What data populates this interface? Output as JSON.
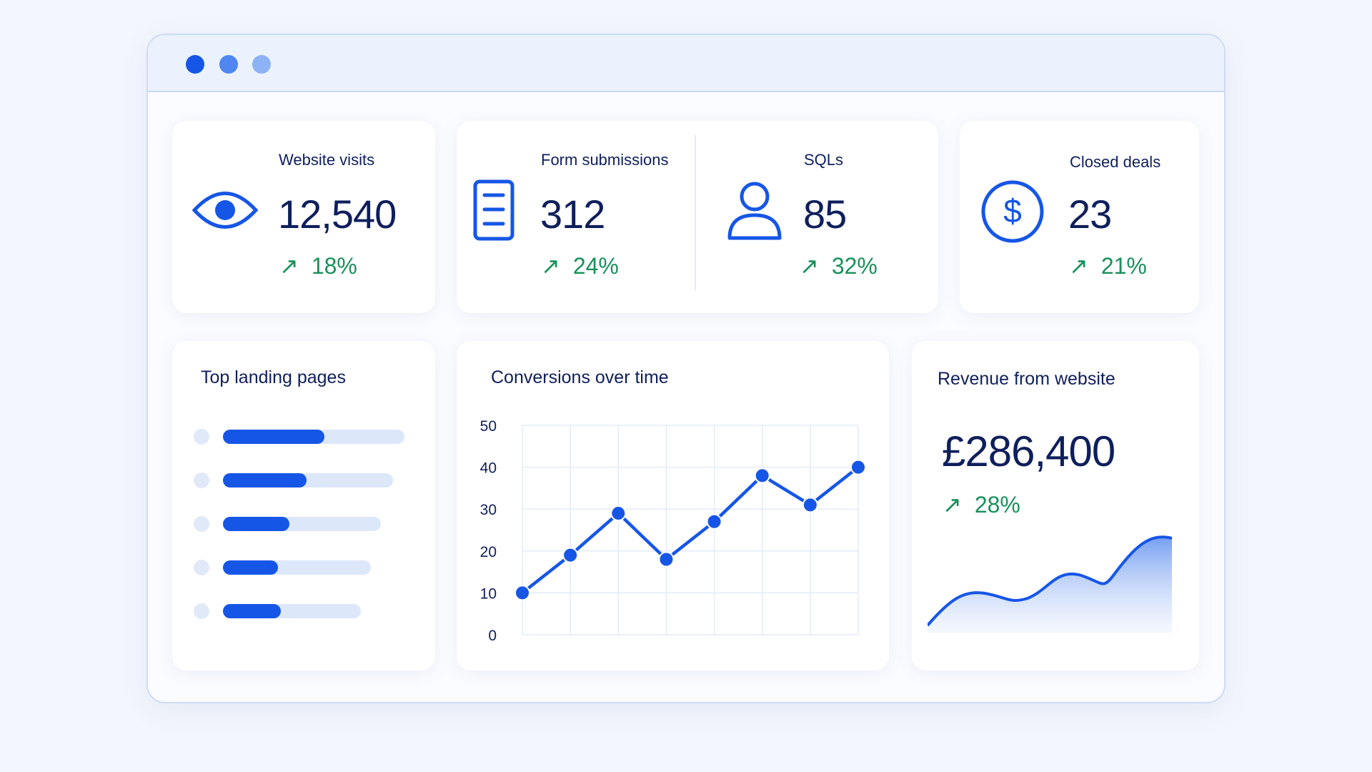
{
  "colors": {
    "accent": "#1656e6",
    "text": "#0f1f5c",
    "positive": "#17915a"
  },
  "window": {
    "dots": [
      "#1656e6",
      "#4f86ef",
      "#8db2f6"
    ]
  },
  "kpis": [
    {
      "label": "Website visits",
      "value": "12,540",
      "change": "18%",
      "icon": "eye-icon"
    },
    {
      "label": "Form submissions",
      "value": "312",
      "change": "24%",
      "icon": "document-list-icon"
    },
    {
      "label": "SQLs",
      "value": "85",
      "change": "32%",
      "icon": "user-icon"
    },
    {
      "label": "Closed deals",
      "value": "23",
      "change": "21%",
      "icon": "dollar-circle-icon"
    }
  ],
  "landing_pages": {
    "title": "Top landing pages",
    "fractions": [
      0.56,
      0.49,
      0.42,
      0.37,
      0.42
    ]
  },
  "revenue": {
    "title": "Revenue from website",
    "value": "£286,400",
    "change": "28%"
  },
  "chart_data": {
    "type": "line",
    "title": "Conversions over time",
    "xlabel": "",
    "ylabel": "",
    "x": [
      1,
      2,
      3,
      4,
      5,
      6,
      7,
      8
    ],
    "values": [
      10,
      19,
      29,
      18,
      27,
      38,
      31,
      40
    ],
    "ylim": [
      0,
      50
    ],
    "yticks": [
      "0",
      "10",
      "20",
      "30",
      "40",
      "50"
    ],
    "grid": true
  }
}
